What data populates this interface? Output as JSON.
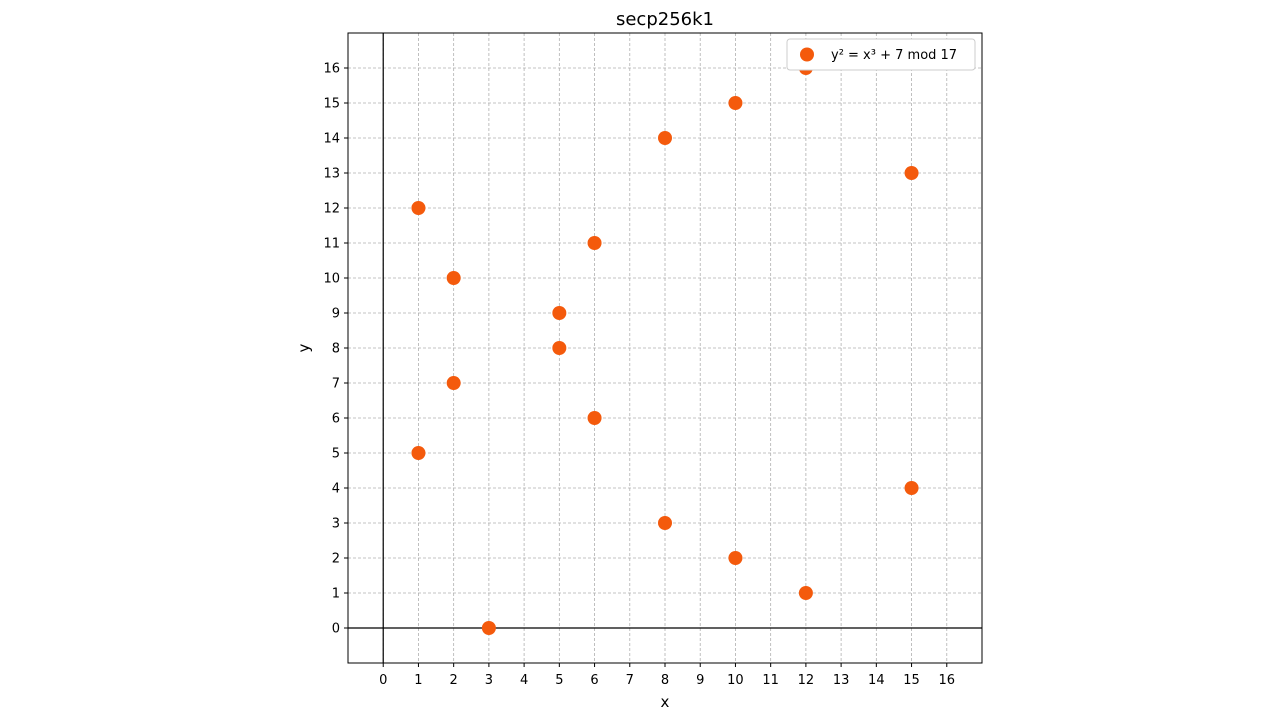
{
  "chart_data": {
    "type": "scatter",
    "title": "secp256k1",
    "xlabel": "x",
    "ylabel": "y",
    "xlim": [
      -1,
      17
    ],
    "ylim": [
      -1,
      17
    ],
    "xticks": [
      0,
      1,
      2,
      3,
      4,
      5,
      6,
      7,
      8,
      9,
      10,
      11,
      12,
      13,
      14,
      15,
      16
    ],
    "yticks": [
      0,
      1,
      2,
      3,
      4,
      5,
      6,
      7,
      8,
      9,
      10,
      11,
      12,
      13,
      14,
      15,
      16
    ],
    "grid": true,
    "axis_lines_at_zero": true,
    "legend_position": "top-right",
    "series": [
      {
        "name": "y² = x³ + 7 mod 17",
        "color": "#f45a0c",
        "points": [
          {
            "x": 1,
            "y": 5
          },
          {
            "x": 1,
            "y": 12
          },
          {
            "x": 2,
            "y": 7
          },
          {
            "x": 2,
            "y": 10
          },
          {
            "x": 3,
            "y": 0
          },
          {
            "x": 5,
            "y": 8
          },
          {
            "x": 5,
            "y": 9
          },
          {
            "x": 6,
            "y": 6
          },
          {
            "x": 6,
            "y": 11
          },
          {
            "x": 8,
            "y": 3
          },
          {
            "x": 8,
            "y": 14
          },
          {
            "x": 10,
            "y": 2
          },
          {
            "x": 10,
            "y": 15
          },
          {
            "x": 12,
            "y": 1
          },
          {
            "x": 12,
            "y": 16
          },
          {
            "x": 15,
            "y": 4
          },
          {
            "x": 15,
            "y": 13
          }
        ]
      }
    ]
  }
}
